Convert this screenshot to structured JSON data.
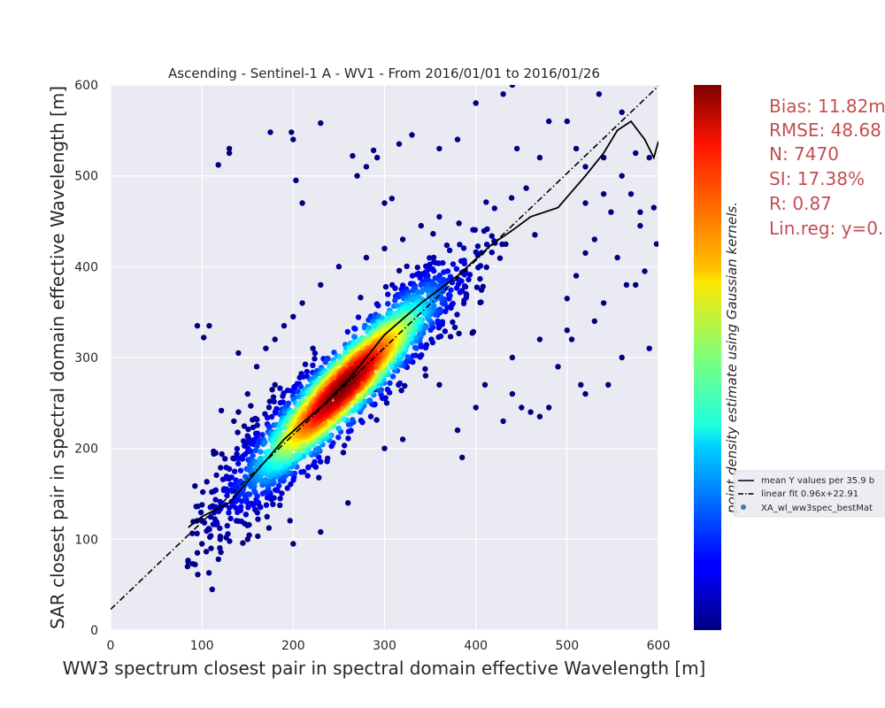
{
  "chart_data": {
    "type": "scatter",
    "title": "Ascending - Sentinel-1 A - WV1 - From 2016/01/01 to 2016/01/26",
    "xlabel": "WW3 spectrum closest pair in spectral domain effective Wavelength [m]",
    "ylabel": "SAR closest pair in spectral domain effective Wavelength [m]",
    "xlim": [
      0,
      600
    ],
    "ylim": [
      0,
      600
    ],
    "xticks": [
      "0",
      "100",
      "200",
      "300",
      "400",
      "500",
      "600"
    ],
    "yticks": [
      "0",
      "100",
      "200",
      "300",
      "400",
      "500",
      "600"
    ],
    "grid": true,
    "colorbar_label": "point density estimate using Gaussian kernels.",
    "colormap": "jet",
    "stats": [
      "Bias: 11.82m",
      "RMSE: 48.68",
      "N: 7470",
      "SI: 17.38%",
      "R: 0.87",
      "Lin.reg: y=0."
    ],
    "legend_position": "right",
    "legend": [
      "mean Y values per 35.9 b",
      "linear fit 0.96x+22.91",
      "XA_wl_ww3spec_bestMat"
    ],
    "linear_fit": {
      "slope": 0.96,
      "intercept": 22.91
    },
    "n_points": 7470,
    "mean_y_line": {
      "x": [
        85,
        100,
        130,
        160,
        190,
        210,
        230,
        260,
        300,
        340,
        380,
        418,
        440,
        460,
        490,
        520,
        540,
        555,
        570,
        585,
        595,
        600
      ],
      "y": [
        113,
        125,
        140,
        175,
        210,
        228,
        245,
        275,
        325,
        360,
        390,
        425,
        440,
        455,
        465,
        500,
        525,
        550,
        560,
        540,
        520,
        538
      ]
    },
    "outliers": [
      [
        95,
        335
      ],
      [
        102,
        322
      ],
      [
        108,
        335
      ],
      [
        118,
        512
      ],
      [
        130,
        530
      ],
      [
        130,
        525
      ],
      [
        140,
        305
      ],
      [
        175,
        548
      ],
      [
        198,
        548
      ],
      [
        200,
        540
      ],
      [
        203,
        495
      ],
      [
        210,
        470
      ],
      [
        230,
        558
      ],
      [
        265,
        522
      ],
      [
        270,
        500
      ],
      [
        280,
        510
      ],
      [
        288,
        528
      ],
      [
        292,
        520
      ],
      [
        300,
        470
      ],
      [
        308,
        475
      ],
      [
        316,
        535
      ],
      [
        330,
        545
      ],
      [
        360,
        530
      ],
      [
        380,
        540
      ],
      [
        400,
        580
      ],
      [
        430,
        590
      ],
      [
        440,
        600
      ],
      [
        445,
        530
      ],
      [
        470,
        520
      ],
      [
        480,
        560
      ],
      [
        500,
        560
      ],
      [
        510,
        530
      ],
      [
        520,
        510
      ],
      [
        540,
        520
      ],
      [
        560,
        570
      ],
      [
        575,
        525
      ],
      [
        590,
        520
      ],
      [
        595,
        465
      ],
      [
        598,
        425
      ],
      [
        580,
        445
      ],
      [
        565,
        380
      ],
      [
        548,
        460
      ],
      [
        530,
        430
      ],
      [
        520,
        415
      ],
      [
        500,
        365
      ],
      [
        490,
        290
      ],
      [
        480,
        245
      ],
      [
        470,
        235
      ],
      [
        460,
        240
      ],
      [
        450,
        245
      ],
      [
        440,
        260
      ],
      [
        430,
        230
      ],
      [
        410,
        270
      ],
      [
        400,
        245
      ],
      [
        385,
        190
      ],
      [
        380,
        220
      ],
      [
        300,
        255
      ],
      [
        290,
        265
      ],
      [
        360,
        270
      ],
      [
        345,
        280
      ],
      [
        320,
        210
      ],
      [
        300,
        200
      ],
      [
        175,
        150
      ],
      [
        160,
        140
      ],
      [
        140,
        120
      ],
      [
        120,
        100
      ],
      [
        110,
        90
      ],
      [
        95,
        85
      ],
      [
        90,
        73
      ],
      [
        85,
        75
      ],
      [
        100,
        95
      ],
      [
        150,
        100
      ],
      [
        200,
        95
      ],
      [
        230,
        108
      ],
      [
        260,
        140
      ],
      [
        535,
        590
      ],
      [
        545,
        270
      ],
      [
        520,
        260
      ],
      [
        505,
        320
      ],
      [
        500,
        330
      ],
      [
        560,
        300
      ],
      [
        590,
        310
      ],
      [
        515,
        270
      ],
      [
        530,
        340
      ],
      [
        470,
        320
      ],
      [
        440,
        300
      ],
      [
        520,
        470
      ],
      [
        540,
        480
      ],
      [
        560,
        500
      ],
      [
        570,
        480
      ],
      [
        580,
        460
      ],
      [
        555,
        410
      ],
      [
        585,
        395
      ],
      [
        575,
        380
      ],
      [
        540,
        360
      ],
      [
        510,
        390
      ],
      [
        360,
        455
      ],
      [
        340,
        445
      ],
      [
        320,
        430
      ],
      [
        300,
        420
      ],
      [
        280,
        410
      ],
      [
        250,
        400
      ],
      [
        230,
        380
      ],
      [
        210,
        360
      ],
      [
        200,
        345
      ],
      [
        190,
        335
      ],
      [
        180,
        320
      ],
      [
        170,
        310
      ],
      [
        160,
        290
      ],
      [
        180,
        270
      ],
      [
        150,
        260
      ],
      [
        140,
        240
      ],
      [
        135,
        230
      ]
    ]
  }
}
